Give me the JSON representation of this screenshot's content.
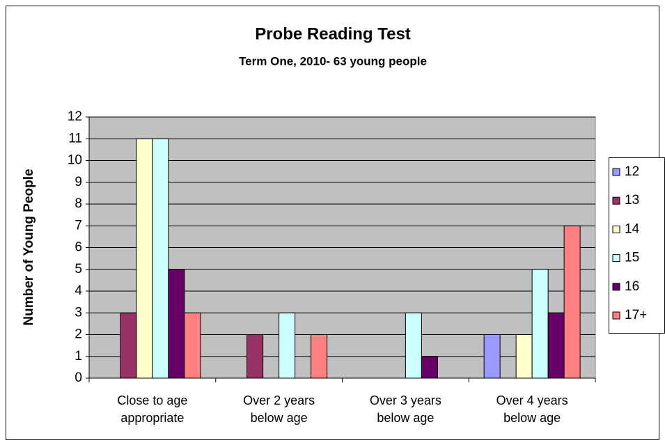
{
  "chart_data": {
    "type": "bar",
    "title": "Probe Reading Test",
    "subtitle": "Term One, 2010- 63 young people",
    "y_label": "Number of Young People",
    "categories": [
      "Close to age appropriate",
      "Over 2 years below age",
      "Over 3 years below age",
      "Over 4 years below age"
    ],
    "series": [
      {
        "name": "12",
        "color": "#9999ff",
        "values": [
          0,
          0,
          0,
          2
        ]
      },
      {
        "name": "13",
        "color": "#993366",
        "values": [
          3,
          2,
          0,
          0
        ]
      },
      {
        "name": "14",
        "color": "#ffffcc",
        "values": [
          11,
          0,
          0,
          2
        ]
      },
      {
        "name": "15",
        "color": "#ccffff",
        "values": [
          11,
          3,
          3,
          5
        ]
      },
      {
        "name": "16",
        "color": "#660066",
        "values": [
          5,
          0,
          1,
          3
        ]
      },
      {
        "name": "17+",
        "color": "#ff8080",
        "values": [
          3,
          2,
          0,
          7
        ]
      }
    ],
    "ylim": [
      0,
      12
    ],
    "yticks": [
      0,
      1,
      2,
      3,
      4,
      5,
      6,
      7,
      8,
      9,
      10,
      11,
      12
    ],
    "grid": true,
    "legend": "right"
  }
}
